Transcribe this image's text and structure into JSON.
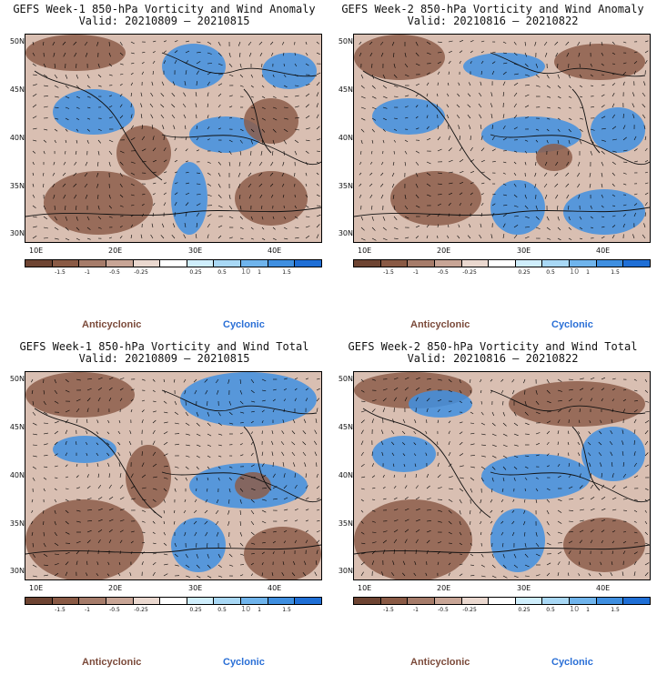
{
  "panels": [
    {
      "title": "GEFS Week-1 850-hPa Vorticity and Wind Anomaly",
      "valid": "Valid: 20210809 – 20210815"
    },
    {
      "title": "GEFS Week-2 850-hPa Vorticity and Wind Anomaly",
      "valid": "Valid: 20210816 – 20210822"
    },
    {
      "title": "GEFS Week-1 850-hPa Vorticity and Wind Total",
      "valid": "Valid: 20210809 – 20210815"
    },
    {
      "title": "GEFS Week-2 850-hPa Vorticity and Wind Total",
      "valid": "Valid: 20210816 – 20210822"
    }
  ],
  "axes": {
    "lat_labels": [
      "50N",
      "45N",
      "40N",
      "35N",
      "30N"
    ],
    "lon_labels": [
      "10E",
      "20E",
      "30E",
      "40E"
    ]
  },
  "colorbar": {
    "labels": [
      "-1.5",
      "-1",
      "-0.5",
      "-0.25",
      "0.25",
      "0.5",
      "1",
      "1.5"
    ],
    "unit_mark": "10",
    "colors": [
      "#6e4432",
      "#8a5a45",
      "#a67c6a",
      "#c8a596",
      "#ead8cf",
      "#ffffff",
      "#cfeefc",
      "#a8d8f5",
      "#6fb4ec",
      "#3f8fe0",
      "#1f6fd6"
    ]
  },
  "legend": {
    "anticyclonic": "Anticyclonic",
    "cyclonic": "Cyclonic"
  },
  "colors": {
    "anticyclonic": "#7b4a3a",
    "cyclonic": "#2a6fd6",
    "brown": "#8c5d4a",
    "blue": "#3f8fe0"
  }
}
